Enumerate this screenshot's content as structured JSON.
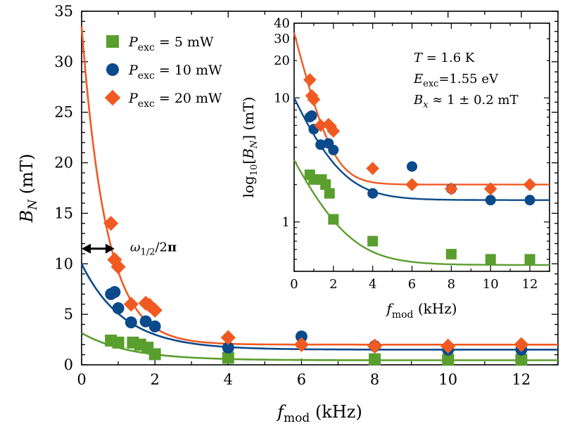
{
  "chart_data": {
    "type": "scatter",
    "main": {
      "xlabel": "f_mod (kHz)",
      "ylabel": "B_N (mT)",
      "xlim": [
        0,
        13
      ],
      "ylim": [
        0,
        35
      ],
      "xticks": [
        0,
        2,
        4,
        6,
        8,
        10,
        12
      ],
      "yticks": [
        0,
        5,
        10,
        15,
        20,
        25,
        30,
        35
      ],
      "legend_position": "top-left",
      "annotation": "ω1/2/2π",
      "annotation_arrow_x": [
        0,
        0.9
      ],
      "annotation_arrow_y": 11.5,
      "series": [
        {
          "name": "P_exc = 5 mW",
          "marker": "square",
          "color": "#5a9e2e",
          "x": [
            0.8,
            1.0,
            1.4,
            1.6,
            1.8,
            2.0,
            4.0,
            8.0,
            10.0,
            12.0
          ],
          "y": [
            2.4,
            2.2,
            2.2,
            2.0,
            1.7,
            1.05,
            0.7,
            0.55,
            0.5,
            0.5
          ],
          "fit": {
            "a": 2.7,
            "c": 0.45,
            "tau": 1.3
          }
        },
        {
          "name": "P_exc = 10 mW",
          "marker": "circle",
          "color": "#0b4a8b",
          "x": [
            0.8,
            0.9,
            1.0,
            1.35,
            1.75,
            2.0,
            4.0,
            6.0,
            8.0,
            10.0,
            12.0
          ],
          "y": [
            7.0,
            7.2,
            5.6,
            4.2,
            4.3,
            3.8,
            1.7,
            2.8,
            1.85,
            1.5,
            1.5
          ],
          "fit": {
            "a": 8.5,
            "c": 1.5,
            "tau": 1.15
          }
        },
        {
          "name": "P_exc = 20 mW",
          "marker": "diamond",
          "color": "#f05a22",
          "x": [
            0.8,
            0.9,
            1.0,
            1.35,
            1.75,
            1.85,
            2.0,
            4.0,
            6.0,
            8.0,
            10.0,
            12.0
          ],
          "y": [
            14.0,
            10.4,
            9.7,
            6.0,
            6.1,
            5.9,
            5.4,
            2.7,
            2.0,
            1.85,
            1.85,
            2.0
          ],
          "fit": {
            "a": 31.5,
            "c": 2.0,
            "tau": 0.68
          }
        }
      ]
    },
    "inset": {
      "xlabel": "f_mod (kHz)",
      "ylabel": "log10[B_N] (mT)",
      "yscale": "log",
      "xlim": [
        0,
        13
      ],
      "ylim": [
        0.4,
        40
      ],
      "xticks": [
        0,
        2,
        4,
        6,
        8,
        10,
        12
      ],
      "ytick_labels": [
        "1",
        "10",
        "20",
        "30",
        "40"
      ],
      "ytick_values": [
        1,
        10,
        20,
        30,
        40
      ],
      "info_lines": [
        "T  = 1.6 K",
        "E_exc=1.55 eV",
        "B_x ≈ 1 ± 0.2 mT"
      ]
    }
  }
}
